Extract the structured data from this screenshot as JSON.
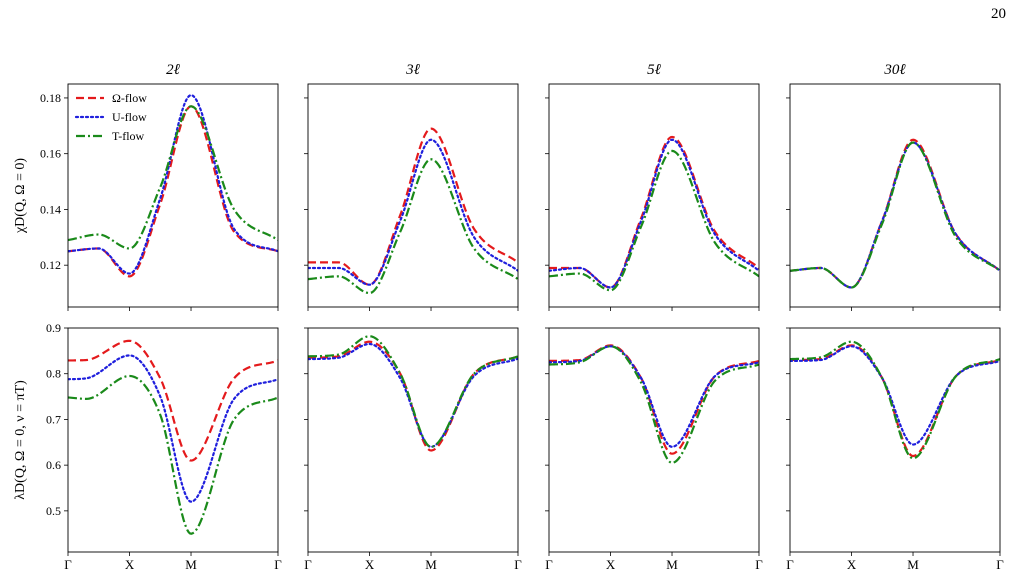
{
  "page_number": "20",
  "colors": {
    "omega": "#e41a1c",
    "u": "#1f1fdd",
    "t": "#1a8a1a"
  },
  "chart_data": [
    {
      "type": "line",
      "panel": "top-2l",
      "title": "2ℓ",
      "ylabel": "χD(Q, Ω = 0)",
      "ylim": [
        0.105,
        0.185
      ],
      "yticks": [
        0.12,
        0.14,
        0.16,
        0.18
      ],
      "x_categories": [
        "Γ",
        "X",
        "M",
        "Γ"
      ],
      "x_positions": [
        0,
        1,
        2,
        3.414
      ],
      "legend": {
        "placement": "top-left",
        "entries": [
          "Ω-flow",
          "U-flow",
          "T-flow"
        ]
      },
      "series": [
        {
          "name": "Ω-flow",
          "style": "dashed",
          "x": [
            0,
            0.5,
            1,
            1.5,
            2,
            2.7,
            3.414
          ],
          "y": [
            0.125,
            0.126,
            0.116,
            0.142,
            0.177,
            0.132,
            0.125
          ]
        },
        {
          "name": "U-flow",
          "style": "dotted",
          "x": [
            0,
            0.5,
            1,
            1.5,
            2,
            2.7,
            3.414
          ],
          "y": [
            0.125,
            0.126,
            0.117,
            0.144,
            0.181,
            0.133,
            0.125
          ]
        },
        {
          "name": "T-flow",
          "style": "dashdot",
          "x": [
            0,
            0.5,
            1,
            1.5,
            2,
            2.7,
            3.414
          ],
          "y": [
            0.129,
            0.131,
            0.126,
            0.148,
            0.177,
            0.14,
            0.129
          ]
        }
      ]
    },
    {
      "type": "line",
      "panel": "top-3l",
      "title": "3ℓ",
      "ylim": [
        0.105,
        0.185
      ],
      "x_categories": [
        "Γ",
        "X",
        "M",
        "Γ"
      ],
      "x_positions": [
        0,
        1,
        2,
        3.414
      ],
      "series": [
        {
          "name": "Ω-flow",
          "style": "dashed",
          "x": [
            0,
            0.5,
            1,
            1.5,
            2,
            2.7,
            3.414
          ],
          "y": [
            0.121,
            0.121,
            0.113,
            0.138,
            0.169,
            0.133,
            0.121
          ]
        },
        {
          "name": "U-flow",
          "style": "dotted",
          "x": [
            0,
            0.5,
            1,
            1.5,
            2,
            2.7,
            3.414
          ],
          "y": [
            0.119,
            0.119,
            0.113,
            0.136,
            0.165,
            0.13,
            0.118
          ]
        },
        {
          "name": "T-flow",
          "style": "dashdot",
          "x": [
            0,
            0.5,
            1,
            1.5,
            2,
            2.7,
            3.414
          ],
          "y": [
            0.115,
            0.116,
            0.11,
            0.132,
            0.158,
            0.126,
            0.115
          ]
        }
      ]
    },
    {
      "type": "line",
      "panel": "top-5l",
      "title": "5ℓ",
      "ylim": [
        0.105,
        0.185
      ],
      "x_categories": [
        "Γ",
        "X",
        "M",
        "Γ"
      ],
      "x_positions": [
        0,
        1,
        2,
        3.414
      ],
      "series": [
        {
          "name": "Ω-flow",
          "style": "dashed",
          "x": [
            0,
            0.5,
            1,
            1.5,
            2,
            2.7,
            3.414
          ],
          "y": [
            0.119,
            0.119,
            0.112,
            0.137,
            0.166,
            0.132,
            0.119
          ]
        },
        {
          "name": "U-flow",
          "style": "dotted",
          "x": [
            0,
            0.5,
            1,
            1.5,
            2,
            2.7,
            3.414
          ],
          "y": [
            0.118,
            0.119,
            0.112,
            0.136,
            0.165,
            0.131,
            0.118
          ]
        },
        {
          "name": "T-flow",
          "style": "dashdot",
          "x": [
            0,
            0.5,
            1,
            1.5,
            2,
            2.7,
            3.414
          ],
          "y": [
            0.116,
            0.117,
            0.111,
            0.134,
            0.161,
            0.128,
            0.116
          ]
        }
      ]
    },
    {
      "type": "line",
      "panel": "top-30l",
      "title": "30ℓ",
      "ylim": [
        0.105,
        0.185
      ],
      "x_categories": [
        "Γ",
        "X",
        "M",
        "Γ"
      ],
      "x_positions": [
        0,
        1,
        2,
        3.414
      ],
      "series": [
        {
          "name": "Ω-flow",
          "style": "dashed",
          "x": [
            0,
            0.5,
            1,
            1.5,
            2,
            2.7,
            3.414
          ],
          "y": [
            0.118,
            0.119,
            0.112,
            0.136,
            0.165,
            0.131,
            0.118
          ]
        },
        {
          "name": "U-flow",
          "style": "dotted",
          "x": [
            0,
            0.5,
            1,
            1.5,
            2,
            2.7,
            3.414
          ],
          "y": [
            0.118,
            0.119,
            0.112,
            0.136,
            0.164,
            0.131,
            0.118
          ]
        },
        {
          "name": "T-flow",
          "style": "dashdot",
          "x": [
            0,
            0.5,
            1,
            1.5,
            2,
            2.7,
            3.414
          ],
          "y": [
            0.118,
            0.119,
            0.112,
            0.135,
            0.164,
            0.13,
            0.118
          ]
        }
      ]
    },
    {
      "type": "line",
      "panel": "bottom-2l",
      "ylabel": "λD(Q, Ω = 0, ν = πT)",
      "ylim": [
        0.41,
        0.9
      ],
      "yticks": [
        0.5,
        0.6,
        0.7,
        0.8,
        0.9
      ],
      "x_categories": [
        "Γ",
        "X",
        "M",
        "Γ"
      ],
      "x_positions": [
        0,
        1,
        2,
        3.414
      ],
      "series": [
        {
          "name": "Ω-flow",
          "style": "dashed",
          "x": [
            0,
            0.3,
            1,
            1.5,
            2,
            2.7,
            3.414
          ],
          "y": [
            0.829,
            0.83,
            0.872,
            0.79,
            0.61,
            0.79,
            0.829
          ]
        },
        {
          "name": "U-flow",
          "style": "dotted",
          "x": [
            0,
            0.3,
            1,
            1.5,
            2,
            2.7,
            3.414
          ],
          "y": [
            0.788,
            0.79,
            0.84,
            0.75,
            0.52,
            0.745,
            0.788
          ]
        },
        {
          "name": "T-flow",
          "style": "dashdot",
          "x": [
            0,
            0.3,
            1,
            1.5,
            2,
            2.7,
            3.414
          ],
          "y": [
            0.748,
            0.745,
            0.795,
            0.71,
            0.45,
            0.7,
            0.748
          ]
        }
      ]
    },
    {
      "type": "line",
      "panel": "bottom-3l",
      "ylim": [
        0.41,
        0.9
      ],
      "x_categories": [
        "Γ",
        "X",
        "M",
        "Γ"
      ],
      "x_positions": [
        0,
        1,
        2,
        3.414
      ],
      "series": [
        {
          "name": "Ω-flow",
          "style": "dashed",
          "x": [
            0,
            0.5,
            1,
            1.5,
            2,
            2.7,
            3.414
          ],
          "y": [
            0.835,
            0.838,
            0.87,
            0.8,
            0.632,
            0.8,
            0.838
          ]
        },
        {
          "name": "U-flow",
          "style": "dotted",
          "x": [
            0,
            0.5,
            1,
            1.5,
            2,
            2.7,
            3.414
          ],
          "y": [
            0.832,
            0.835,
            0.865,
            0.79,
            0.64,
            0.795,
            0.833
          ]
        },
        {
          "name": "T-flow",
          "style": "dashdot",
          "x": [
            0,
            0.5,
            1,
            1.5,
            2,
            2.7,
            3.414
          ],
          "y": [
            0.838,
            0.842,
            0.882,
            0.8,
            0.64,
            0.8,
            0.838
          ]
        }
      ]
    },
    {
      "type": "line",
      "panel": "bottom-5l",
      "ylim": [
        0.41,
        0.9
      ],
      "x_categories": [
        "Γ",
        "X",
        "M",
        "Γ"
      ],
      "x_positions": [
        0,
        1,
        2,
        3.414
      ],
      "series": [
        {
          "name": "Ω-flow",
          "style": "dashed",
          "x": [
            0,
            0.5,
            1,
            1.5,
            2,
            2.7,
            3.414
          ],
          "y": [
            0.828,
            0.83,
            0.862,
            0.79,
            0.625,
            0.795,
            0.828
          ]
        },
        {
          "name": "U-flow",
          "style": "dotted",
          "x": [
            0,
            0.5,
            1,
            1.5,
            2,
            2.7,
            3.414
          ],
          "y": [
            0.825,
            0.828,
            0.86,
            0.79,
            0.64,
            0.795,
            0.825
          ]
        },
        {
          "name": "T-flow",
          "style": "dashdot",
          "x": [
            0,
            0.5,
            1,
            1.5,
            2,
            2.7,
            3.414
          ],
          "y": [
            0.82,
            0.825,
            0.86,
            0.78,
            0.605,
            0.785,
            0.82
          ]
        }
      ]
    },
    {
      "type": "line",
      "panel": "bottom-30l",
      "ylim": [
        0.41,
        0.9
      ],
      "x_categories": [
        "Γ",
        "X",
        "M",
        "Γ"
      ],
      "x_positions": [
        0,
        1,
        2,
        3.414
      ],
      "series": [
        {
          "name": "Ω-flow",
          "style": "dashed",
          "x": [
            0,
            0.5,
            1,
            1.5,
            2,
            2.7,
            3.414
          ],
          "y": [
            0.83,
            0.832,
            0.862,
            0.79,
            0.62,
            0.795,
            0.83
          ]
        },
        {
          "name": "U-flow",
          "style": "dotted",
          "x": [
            0,
            0.5,
            1,
            1.5,
            2,
            2.7,
            3.414
          ],
          "y": [
            0.828,
            0.83,
            0.86,
            0.79,
            0.645,
            0.795,
            0.828
          ]
        },
        {
          "name": "T-flow",
          "style": "dashdot",
          "x": [
            0,
            0.5,
            1,
            1.5,
            2,
            2.7,
            3.414
          ],
          "y": [
            0.832,
            0.836,
            0.87,
            0.79,
            0.615,
            0.795,
            0.832
          ]
        }
      ]
    }
  ]
}
